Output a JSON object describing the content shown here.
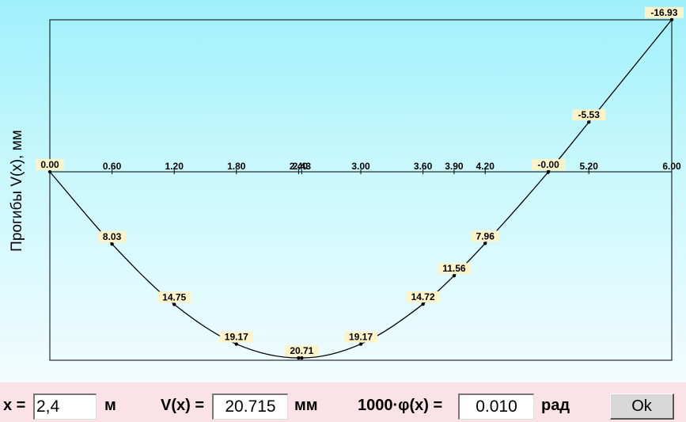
{
  "chart_data": {
    "type": "line",
    "title": "",
    "xlabel": "",
    "ylabel": "Прогибы V(x), мм",
    "xlim": [
      0,
      6
    ],
    "ylim": [
      -16.93,
      21.0
    ],
    "y_axis_inverted": true,
    "grid": false,
    "x_ticks": [
      "0.00",
      "0.60",
      "1.20",
      "1.80",
      "2.40",
      "2.43",
      "3.00",
      "3.60",
      "3.90",
      "4.20",
      "4.80",
      "4.81",
      "5.20",
      "6.00"
    ],
    "series": [
      {
        "values": [
          {
            "x": 0.0,
            "y": 0.0
          },
          {
            "x": 0.6,
            "y": 8.03
          },
          {
            "x": 1.2,
            "y": 14.75
          },
          {
            "x": 1.8,
            "y": 19.17
          },
          {
            "x": 2.4,
            "y": 20.71
          },
          {
            "x": 2.43,
            "y": 20.71
          },
          {
            "x": 3.0,
            "y": 19.17
          },
          {
            "x": 3.6,
            "y": 14.72
          },
          {
            "x": 3.9,
            "y": 11.56
          },
          {
            "x": 4.2,
            "y": 7.96
          },
          {
            "x": 4.81,
            "y": 0.0
          },
          {
            "x": 5.2,
            "y": -5.53
          },
          {
            "x": 6.0,
            "y": -16.93
          }
        ]
      }
    ],
    "point_labels": [
      {
        "x": 0.0,
        "y": 0.0,
        "text": "0.00"
      },
      {
        "x": 0.6,
        "y": 8.03,
        "text": "8.03"
      },
      {
        "x": 1.2,
        "y": 14.75,
        "text": "14.75"
      },
      {
        "x": 1.8,
        "y": 19.17,
        "text": "19.17"
      },
      {
        "x": 2.43,
        "y": 20.71,
        "text": "20.71"
      },
      {
        "x": 3.0,
        "y": 19.17,
        "text": "19.17"
      },
      {
        "x": 3.6,
        "y": 14.72,
        "text": "14.72"
      },
      {
        "x": 3.9,
        "y": 11.56,
        "text": "11.56"
      },
      {
        "x": 4.2,
        "y": 7.96,
        "text": "7.96"
      },
      {
        "x": 4.81,
        "y": 0.0,
        "text": "-0.00"
      },
      {
        "x": 5.2,
        "y": -5.53,
        "text": "-5.53"
      },
      {
        "x": 6.0,
        "y": -16.93,
        "text": "-16.93"
      }
    ]
  },
  "controls": {
    "x_label": "x =",
    "x_value": "2,4",
    "x_unit": "м",
    "v_label": "V(x) =",
    "v_value": "20.715",
    "v_unit": "мм",
    "phi_label": "1000·φ(x) =",
    "phi_value": "0.010",
    "phi_unit": "рад",
    "ok_label": "Ok"
  },
  "colors": {
    "curve": "#000000",
    "label_bg": "#fdf3c8",
    "plot_bg_top": "#9ff0fb",
    "plot_bg_bottom": "#f2fcfe",
    "control_bar_bg": "#fbe2e6"
  }
}
